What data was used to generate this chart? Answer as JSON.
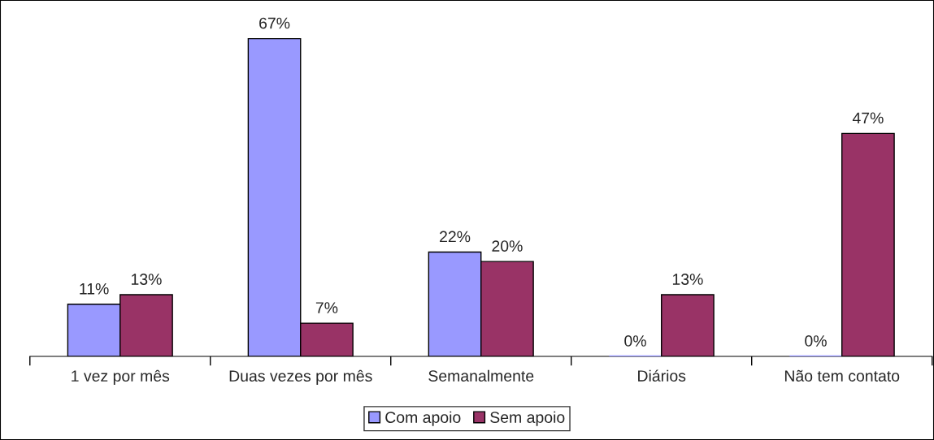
{
  "chart_data": {
    "type": "bar",
    "categories": [
      "1 vez por mês",
      "Duas vezes por mês",
      "Semanalmente",
      "Diários",
      "Não tem contato"
    ],
    "series": [
      {
        "name": "Com apoio",
        "color": "#9999ff",
        "values": [
          11,
          67,
          22,
          0,
          0
        ],
        "value_labels": [
          "11%",
          "67%",
          "22%",
          "0%",
          "0%"
        ]
      },
      {
        "name": "Sem apoio",
        "color": "#993366",
        "values": [
          13,
          7,
          20,
          13,
          47
        ],
        "value_labels": [
          "13%",
          "7%",
          "20%",
          "13%",
          "47%"
        ]
      }
    ],
    "legend": "bottom",
    "grid": false
  }
}
